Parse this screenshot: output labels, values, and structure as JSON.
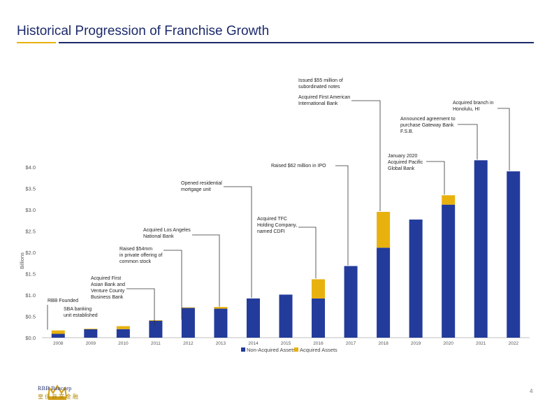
{
  "header": {
    "title": "Historical Progression of Franchise Growth"
  },
  "chart_data": {
    "type": "bar",
    "stacked": true,
    "categories": [
      "2008",
      "2009",
      "2010",
      "2011",
      "2012",
      "2013",
      "2014",
      "2015",
      "2016",
      "2017",
      "2018",
      "2019",
      "2020",
      "2021",
      "2022"
    ],
    "series": [
      {
        "name": "Non-Acquired Assets",
        "color": "#233b9b",
        "values": [
          0.09,
          0.2,
          0.2,
          0.4,
          0.7,
          0.68,
          0.92,
          1.01,
          0.92,
          1.68,
          2.11,
          2.77,
          3.12,
          4.16,
          3.9
        ]
      },
      {
        "name": "Acquired Assets",
        "color": "#e8b10e",
        "values": [
          0.08,
          0.01,
          0.07,
          0.01,
          0.01,
          0.04,
          0.0,
          0.0,
          0.45,
          0.0,
          0.84,
          0.0,
          0.22,
          0.0,
          0.0
        ]
      }
    ],
    "ylabel": "Billions",
    "ylim": [
      0,
      4.0
    ],
    "yticks": [
      "$0.0",
      "$0.5",
      "$1.0",
      "$1.5",
      "$2.0",
      "$2.5",
      "$3.0",
      "$3.5",
      "$4.0"
    ],
    "legend": "bottom",
    "grid": false,
    "annotations": [
      {
        "text": "RBB Founded"
      },
      {
        "text": "SBA banking\nunit established"
      },
      {
        "text": "Acquired First\nAsian Bank and\nVenture County\nBusiness Bank"
      },
      {
        "text": "Raised $54mm\nin private offering of\ncommon stock"
      },
      {
        "text": "Acquired Los Angeles\nNational Bank"
      },
      {
        "text": "Opened residential\nmortgage unit"
      },
      {
        "text": "Acquired TFC\nHolding Company,\nnamed CDFI"
      },
      {
        "text": "Raised $62 million in IPO"
      },
      {
        "text": "Issued $55 million of\nsubordinated notes"
      },
      {
        "text": "Acquired First American\nInternational Bank"
      },
      {
        "text": "January 2020\nAcquired Pacific\nGlobal Bank"
      },
      {
        "text": "Announced agreement to\npurchase Gateway Bank\nF.S.B."
      },
      {
        "text": "Acquired branch in\nHonolulu, HI"
      }
    ]
  },
  "footer": {
    "logo_line1": "RBB Bancorp",
    "logo_line2": "皇佳商業金融",
    "page_number": "4"
  }
}
